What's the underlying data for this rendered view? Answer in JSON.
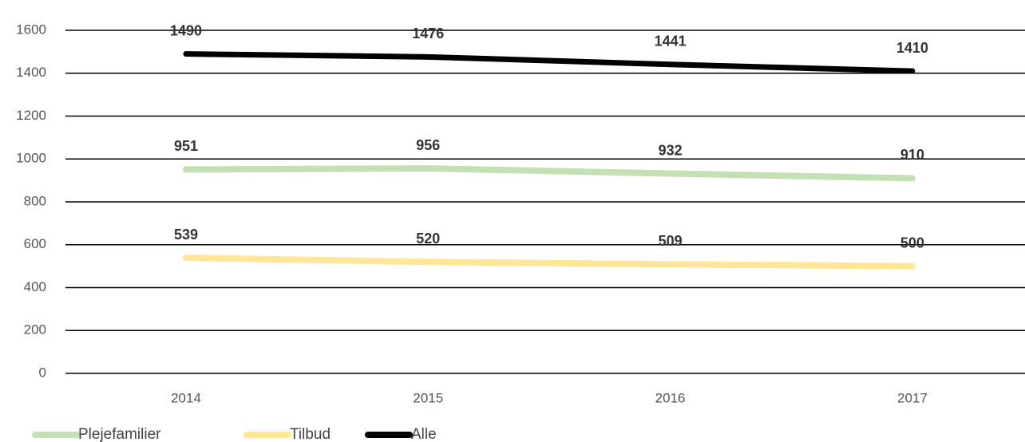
{
  "chart_data": {
    "type": "line",
    "categories": [
      "2014",
      "2015",
      "2016",
      "2017"
    ],
    "series": [
      {
        "name": "Plejefamilier",
        "color": "#c5e0b4",
        "values": [
          951,
          956,
          932,
          910
        ]
      },
      {
        "name": "Tilbud",
        "color": "#ffe699",
        "values": [
          539,
          520,
          509,
          500
        ]
      },
      {
        "name": "Alle",
        "color": "#000000",
        "values": [
          1490,
          1476,
          1441,
          1410
        ]
      }
    ],
    "ylim": [
      0,
      1600
    ],
    "yticks": [
      0,
      200,
      400,
      600,
      800,
      1000,
      1200,
      1400,
      1600
    ],
    "grid": true,
    "legend": "bottom-left"
  }
}
